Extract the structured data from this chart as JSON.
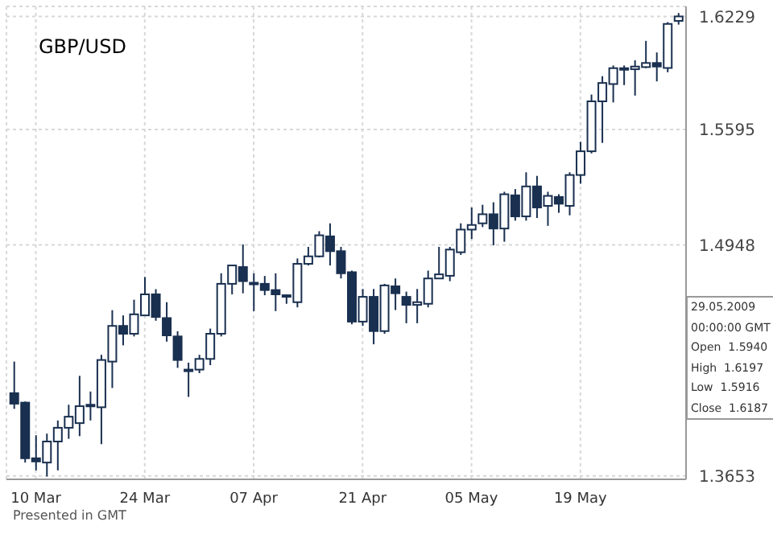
{
  "chart_data": {
    "type": "candlestick",
    "title": "GBP/USD",
    "categories": [
      null,
      null,
      "10 Mar",
      null,
      null,
      null,
      null,
      null,
      null,
      null,
      null,
      null,
      "24 Mar",
      null,
      null,
      null,
      null,
      null,
      null,
      null,
      null,
      null,
      "07 Apr",
      null,
      null,
      null,
      null,
      null,
      null,
      null,
      null,
      null,
      "21 Apr",
      null,
      null,
      null,
      null,
      null,
      null,
      null,
      null,
      null,
      "05 May",
      null,
      null,
      null,
      null,
      null,
      null,
      null,
      null,
      null,
      "19 May",
      null,
      null,
      null,
      null,
      null,
      null,
      null,
      null,
      null
    ],
    "ohlc": [
      [
        1.4117,
        1.4294,
        1.4029,
        1.4058
      ],
      [
        1.4064,
        1.407,
        1.3728,
        1.3752
      ],
      [
        1.3752,
        1.3881,
        1.3684,
        1.3734
      ],
      [
        1.3728,
        1.389,
        1.365,
        1.3846
      ],
      [
        1.3846,
        1.3964,
        1.3684,
        1.3923
      ],
      [
        1.3923,
        1.4052,
        1.3861,
        1.3985
      ],
      [
        1.3949,
        1.4214,
        1.3876,
        1.4044
      ],
      [
        1.4044,
        1.4126,
        1.3964,
        1.4052
      ],
      [
        1.4038,
        1.4332,
        1.3831,
        1.4303
      ],
      [
        1.4294,
        1.4582,
        1.4146,
        1.4494
      ],
      [
        1.4494,
        1.4553,
        1.4385,
        1.445
      ],
      [
        1.445,
        1.4641,
        1.4435,
        1.4559
      ],
      [
        1.4553,
        1.4768,
        1.4553,
        1.4671
      ],
      [
        1.4671,
        1.47,
        1.4523,
        1.4544
      ],
      [
        1.4538,
        1.4627,
        1.4406,
        1.4441
      ],
      [
        1.4435,
        1.4464,
        1.4259,
        1.4303
      ],
      [
        1.4249,
        1.4288,
        1.4096,
        1.4244
      ],
      [
        1.4249,
        1.4332,
        1.4229,
        1.4309
      ],
      [
        1.4309,
        1.4479,
        1.4274,
        1.445
      ],
      [
        1.445,
        1.4789,
        1.4435,
        1.473
      ],
      [
        1.473,
        1.4833,
        1.4671,
        1.4833
      ],
      [
        1.4824,
        1.4951,
        1.4677,
        1.4745
      ],
      [
        1.4736,
        1.4789,
        1.4577,
        1.4727
      ],
      [
        1.473,
        1.4774,
        1.4666,
        1.4695
      ],
      [
        1.4695,
        1.4789,
        1.4577,
        1.4671
      ],
      [
        1.4666,
        1.4671,
        1.4618,
        1.4663
      ],
      [
        1.4627,
        1.4872,
        1.4598,
        1.4842
      ],
      [
        1.4842,
        1.4937,
        1.4833,
        1.4884
      ],
      [
        1.4884,
        1.5025,
        1.4878,
        1.5002
      ],
      [
        1.4996,
        1.5069,
        1.4833,
        1.4913
      ],
      [
        1.4913,
        1.4937,
        1.476,
        1.4789
      ],
      [
        1.4795,
        1.4804,
        1.4503,
        1.4518
      ],
      [
        1.4518,
        1.4701,
        1.4494,
        1.4657
      ],
      [
        1.4657,
        1.4701,
        1.4391,
        1.4465
      ],
      [
        1.4465,
        1.473,
        1.445,
        1.4721
      ],
      [
        1.4716,
        1.476,
        1.4583,
        1.4677
      ],
      [
        1.4657,
        1.4686,
        1.4509,
        1.4612
      ],
      [
        1.4612,
        1.4701,
        1.4509,
        1.4627
      ],
      [
        1.4618,
        1.4804,
        1.4598,
        1.476
      ],
      [
        1.476,
        1.4937,
        1.476,
        1.4783
      ],
      [
        1.4775,
        1.4937,
        1.4745,
        1.4922
      ],
      [
        1.4907,
        1.5069,
        1.4892,
        1.5034
      ],
      [
        1.5034,
        1.5158,
        1.4981,
        1.506
      ],
      [
        1.5069,
        1.5173,
        1.5048,
        1.512
      ],
      [
        1.512,
        1.5187,
        1.4946,
        1.504
      ],
      [
        1.504,
        1.5246,
        1.4966,
        1.5232
      ],
      [
        1.5226,
        1.5261,
        1.5084,
        1.5108
      ],
      [
        1.5108,
        1.5355,
        1.5084,
        1.5276
      ],
      [
        1.5276,
        1.5335,
        1.5099,
        1.5158
      ],
      [
        1.5167,
        1.5246,
        1.5055,
        1.5223
      ],
      [
        1.5217,
        1.5232,
        1.5128,
        1.5179
      ],
      [
        1.5167,
        1.5355,
        1.5114,
        1.534
      ],
      [
        1.534,
        1.5526,
        1.5291,
        1.5473
      ],
      [
        1.5473,
        1.5791,
        1.5461,
        1.5753
      ],
      [
        1.5753,
        1.5894,
        1.552,
        1.5856
      ],
      [
        1.585,
        1.5954,
        1.5747,
        1.5939
      ],
      [
        1.5933,
        1.5954,
        1.5844,
        1.5939
      ],
      [
        1.5933,
        1.5983,
        1.5785,
        1.5948
      ],
      [
        1.5945,
        1.6092,
        1.5939,
        1.5968
      ],
      [
        1.5968,
        1.6027,
        1.5865,
        1.5948
      ],
      [
        1.594,
        1.6197,
        1.5916,
        1.6187
      ],
      [
        1.6204,
        1.6248,
        1.6183,
        1.6229
      ]
    ],
    "color": "#1a3050",
    "ylim": [
      1.3634,
      1.6285
    ],
    "yticks": [
      1.3653,
      1.4948,
      1.5595,
      1.6229
    ],
    "grid": true,
    "annotations": [
      "Presented in GMT",
      "29.05.2009",
      "00:00:00 GMT",
      "Open  1.5940",
      "High  1.6197",
      "Low  1.5916",
      "Close  1.6187"
    ]
  }
}
